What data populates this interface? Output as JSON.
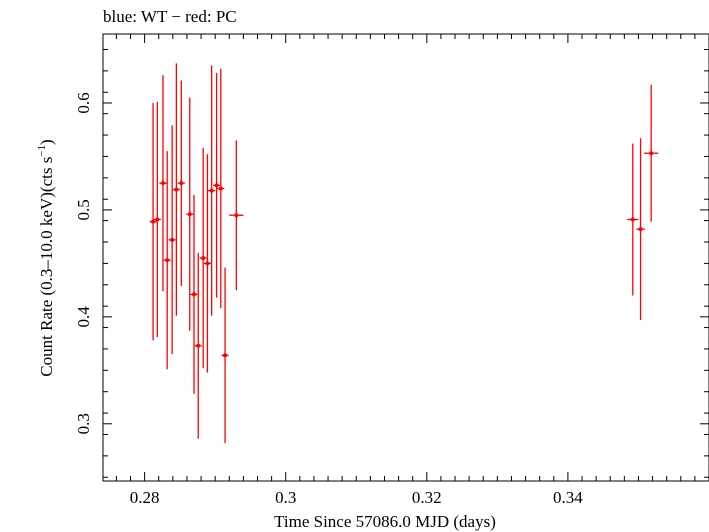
{
  "chart_data": {
    "type": "scatter",
    "title": "blue: WT − red: PC",
    "xlabel": "Time Since 57086.0 MJD (days)",
    "ylabel_main": "Count Rate (0.3–10.0 keV)(cts s",
    "ylabel_sup": "−1",
    "ylabel_close": ")",
    "xlim": [
      0.2741,
      0.36
    ],
    "ylim": [
      0.2465,
      0.6645
    ],
    "xticks": [
      0.28,
      0.3,
      0.32,
      0.34
    ],
    "xtick_labels": [
      "0.28",
      "0.3",
      "0.32",
      "0.34"
    ],
    "yticks": [
      0.3,
      0.4,
      0.5,
      0.6
    ],
    "ytick_labels": [
      "0.3",
      "0.4",
      "0.5",
      "0.6"
    ],
    "grid": false,
    "colors": {
      "PC": "#ff0000",
      "axes": "#000000"
    },
    "series": [
      {
        "name": "PC",
        "color": "#ff0000",
        "points": [
          {
            "x": 0.2812,
            "xerr": 0.0005,
            "y": 0.489,
            "yerr": 0.111
          },
          {
            "x": 0.2818,
            "xerr": 0.0005,
            "y": 0.491,
            "yerr": 0.11
          },
          {
            "x": 0.2826,
            "xerr": 0.0005,
            "y": 0.525,
            "yerr": 0.101
          },
          {
            "x": 0.2832,
            "xerr": 0.0005,
            "y": 0.453,
            "yerr": 0.102
          },
          {
            "x": 0.2839,
            "xerr": 0.0005,
            "y": 0.472,
            "yerr": 0.107
          },
          {
            "x": 0.2845,
            "xerr": 0.0005,
            "y": 0.519,
            "yerr": 0.118
          },
          {
            "x": 0.2852,
            "xerr": 0.0005,
            "y": 0.525,
            "yerr": 0.096
          },
          {
            "x": 0.2864,
            "xerr": 0.0005,
            "y": 0.496,
            "yerr": 0.109
          },
          {
            "x": 0.287,
            "xerr": 0.0005,
            "y": 0.421,
            "yerr": 0.093
          },
          {
            "x": 0.2876,
            "xerr": 0.0005,
            "y": 0.373,
            "yerr": 0.087
          },
          {
            "x": 0.2883,
            "xerr": 0.0005,
            "y": 0.455,
            "yerr": 0.103
          },
          {
            "x": 0.2889,
            "xerr": 0.0005,
            "y": 0.45,
            "yerr": 0.102
          },
          {
            "x": 0.2895,
            "xerr": 0.0005,
            "y": 0.518,
            "yerr": 0.117
          },
          {
            "x": 0.2902,
            "xerr": 0.0005,
            "y": 0.523,
            "yerr": 0.105
          },
          {
            "x": 0.2908,
            "xerr": 0.0005,
            "y": 0.52,
            "yerr": 0.112
          },
          {
            "x": 0.2914,
            "xerr": 0.0005,
            "y": 0.364,
            "yerr": 0.082
          },
          {
            "x": 0.293,
            "xerr": 0.001,
            "y": 0.495,
            "yerr": 0.07
          },
          {
            "x": 0.3492,
            "xerr": 0.0008,
            "y": 0.491,
            "yerr": 0.071
          },
          {
            "x": 0.3503,
            "xerr": 0.0006,
            "y": 0.482,
            "yerr": 0.085
          },
          {
            "x": 0.3518,
            "xerr": 0.001,
            "y": 0.553,
            "yerr": 0.064
          }
        ]
      }
    ]
  }
}
